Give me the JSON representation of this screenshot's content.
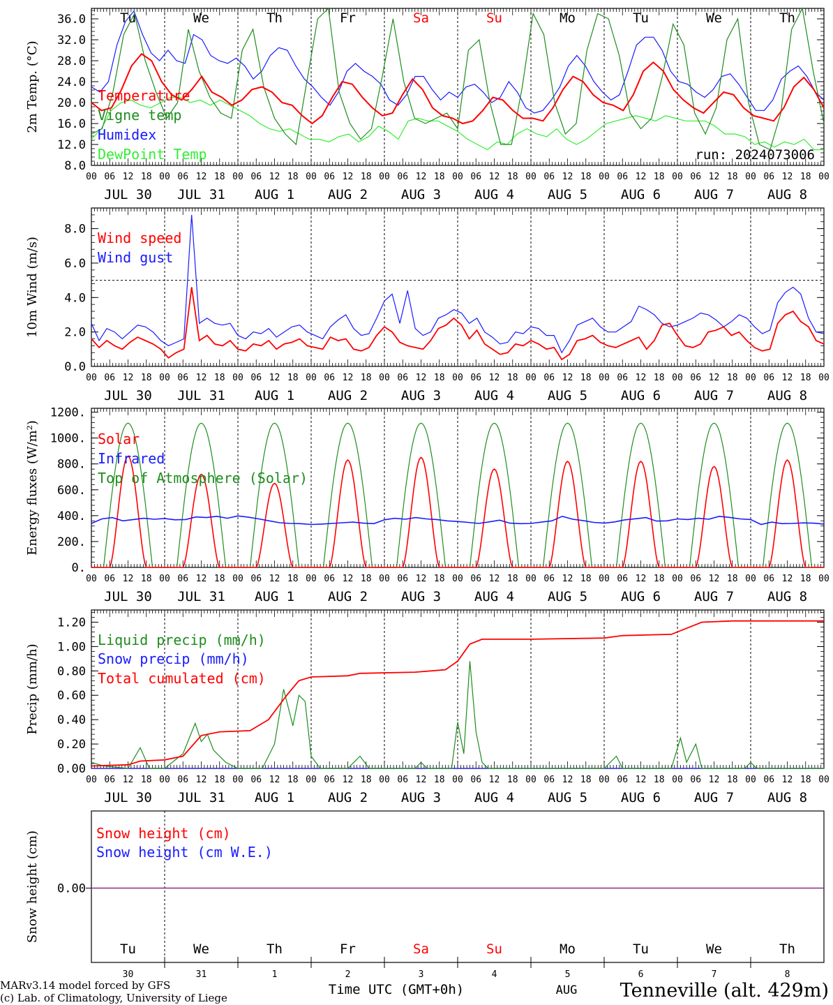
{
  "colors": {
    "red": "#ff0000",
    "dark_green": "#1e8c1e",
    "blue": "#1a1aff",
    "light_green": "#33ee33",
    "purple": "#8b2a8b",
    "black": "#000000",
    "weekend": "#ff0000"
  },
  "days": {
    "weekday_labels": [
      "Tu",
      "We",
      "Th",
      "Fr",
      "Sa",
      "Su",
      "Mo",
      "Tu",
      "We",
      "Th"
    ],
    "weekend_flags": [
      false,
      false,
      false,
      false,
      true,
      true,
      false,
      false,
      false,
      false
    ],
    "date_labels": [
      "JUL 30",
      "JUL 31",
      "AUG  1",
      "AUG  2",
      "AUG  3",
      "AUG  4",
      "AUG  5",
      "AUG  6",
      "AUG  7",
      "AUG  8"
    ],
    "hour_ticks": [
      "00",
      "06",
      "12",
      "18"
    ],
    "end_hour": "00",
    "day_numbers": [
      "30",
      "31",
      "1",
      "2",
      "3",
      "4",
      "5",
      "6",
      "7",
      "8"
    ]
  },
  "footer": {
    "time_axis_label": "Time UTC (GMT+0h)",
    "month_label": "AUG",
    "model_line1": "MARv3.14 model forced by GFS",
    "model_line2": "(c) Lab. of Climatology, University of Liege",
    "station": "Tenneville (alt. 429m)"
  },
  "chart_data": [
    {
      "type": "line",
      "ylabel": "2m Temp. (°C)",
      "ylim": [
        8,
        38
      ],
      "yticks": [
        "8.0",
        "12.0",
        "16.0",
        "20.0",
        "24.0",
        "28.0",
        "32.0",
        "36.0"
      ],
      "ytick_values": [
        8,
        12,
        16,
        20,
        24,
        28,
        32,
        36
      ],
      "run_label": "run: 2024073006",
      "grid": "vertical dashed day separators",
      "series": [
        {
          "name": "Temperature",
          "color": "red",
          "values": [
            20,
            18.5,
            19,
            22.5,
            27,
            29.3,
            28,
            24,
            21.5,
            20.5,
            22.5,
            25,
            22,
            21,
            19.5,
            20.5,
            22.5,
            23,
            22,
            20,
            19.5,
            17.5,
            16,
            17.5,
            21,
            24,
            23.5,
            21,
            19,
            17.5,
            18,
            21.5,
            24.5,
            22.5,
            19,
            17.5,
            17,
            16,
            16.5,
            18.5,
            21,
            20.5,
            18.5,
            17,
            17,
            16.5,
            19,
            22.5,
            25,
            24,
            21.5,
            20,
            19.5,
            18.5,
            21.5,
            26,
            27.7,
            26,
            22.5,
            20.5,
            19,
            18,
            20,
            22,
            21.5,
            19,
            17.5,
            17,
            16.5,
            19,
            23,
            24.8,
            22.5,
            19
          ]
        },
        {
          "name": "Vigne temp",
          "color": "dark_green",
          "values": [
            14,
            15,
            22,
            33,
            37,
            28,
            22,
            17,
            20,
            34,
            26,
            21,
            18,
            17,
            30,
            34,
            23,
            17,
            14,
            12,
            24,
            36,
            38,
            22,
            16,
            13,
            15,
            25,
            36,
            24,
            17,
            16,
            17,
            18,
            15,
            30,
            32,
            20,
            12,
            12,
            23,
            37,
            33,
            20,
            14,
            16,
            30,
            37,
            36,
            29,
            18,
            15,
            17,
            25,
            35,
            31,
            18,
            14,
            19,
            32,
            36,
            20,
            12,
            11,
            18,
            34,
            38,
            26,
            16
          ]
        },
        {
          "name": "Humidex",
          "color": "blue",
          "values": [
            23,
            22,
            24,
            31,
            35.5,
            37.5,
            33,
            29.5,
            28,
            30,
            28,
            27.5,
            33,
            32,
            29,
            28,
            27.5,
            28.5,
            27,
            24.5,
            26,
            29,
            30.5,
            30,
            27,
            24.5,
            23,
            21,
            19.5,
            22,
            26,
            27.5,
            26,
            25,
            23.5,
            20.5,
            19.5,
            21.5,
            25,
            25,
            22.5,
            20.5,
            22,
            21,
            23,
            23.5,
            22,
            20,
            21,
            24,
            22,
            19,
            18,
            18.5,
            20.5,
            23,
            27,
            29,
            27,
            24,
            22,
            20.5,
            21.5,
            26,
            31,
            32.5,
            32.5,
            30,
            26,
            24,
            23.5,
            22,
            21,
            22.5,
            25,
            25.5,
            23.5,
            21,
            18.5,
            18.5,
            20.5,
            24.5,
            26,
            27,
            25,
            22,
            20.5
          ]
        },
        {
          "name": "DewPoint Temp",
          "color": "light_green",
          "values": [
            13,
            15,
            18.5,
            20,
            20.5,
            19.5,
            19,
            20,
            21,
            21,
            20,
            20.5,
            19.5,
            20.5,
            19.5,
            18.5,
            17.5,
            16,
            15,
            14.5,
            15,
            14,
            13,
            13,
            12.5,
            13.5,
            14,
            12.5,
            13.5,
            15.5,
            14.5,
            13,
            16.5,
            17,
            16.5,
            16.5,
            15.5,
            14.5,
            13,
            12,
            11,
            12.5,
            12,
            14,
            15,
            14,
            13.5,
            15,
            13,
            12,
            13,
            14.5,
            16,
            16.5,
            17,
            17.5,
            17,
            16.5,
            17.5,
            17,
            16.5,
            16.5,
            16.5,
            15.5,
            14,
            14,
            13.5,
            12,
            12.5,
            11.5,
            12.5,
            12,
            13,
            11,
            11
          ]
        }
      ]
    },
    {
      "type": "line",
      "ylabel": "10m Wind (m/s)",
      "ylim": [
        0,
        9.2
      ],
      "yticks": [
        "0.0",
        "2.0",
        "4.0",
        "6.0",
        "8.0"
      ],
      "ytick_values": [
        0,
        2,
        4,
        6,
        8
      ],
      "reference_line": 5,
      "series": [
        {
          "name": "Wind speed",
          "color": "red",
          "values": [
            1.6,
            1.1,
            1.5,
            1.2,
            1.0,
            1.4,
            1.7,
            1.5,
            1.3,
            1.0,
            0.5,
            0.8,
            1.0,
            4.6,
            1.5,
            1.8,
            1.3,
            1.2,
            1.5,
            1.0,
            0.9,
            1.3,
            1.2,
            1.5,
            1.0,
            1.3,
            1.4,
            1.6,
            1.2,
            1.1,
            1.0,
            1.7,
            1.5,
            1.6,
            1.0,
            0.9,
            1.1,
            1.8,
            2.3,
            2.0,
            1.4,
            1.2,
            1.1,
            1.0,
            1.5,
            2.2,
            2.4,
            2.8,
            2.4,
            1.6,
            2.1,
            1.3,
            1.0,
            0.7,
            0.8,
            1.3,
            1.2,
            1.5,
            1.3,
            1.0,
            1.1,
            0.4,
            0.7,
            1.5,
            1.6,
            1.8,
            1.4,
            1.2,
            1.1,
            1.3,
            1.5,
            1.7,
            1.0,
            1.5,
            2.4,
            2.5,
            1.8,
            1.2,
            1.1,
            1.3,
            2.0,
            2.1,
            2.3,
            1.8,
            2.0,
            1.5,
            1.1,
            0.9,
            1.0,
            2.5,
            3.0,
            3.2,
            2.6,
            2.3,
            1.5,
            1.3
          ]
        },
        {
          "name": "Wind gust",
          "color": "blue",
          "values": [
            2.5,
            1.5,
            2.2,
            2.0,
            1.6,
            2.0,
            2.4,
            2.3,
            2.0,
            1.5,
            1.2,
            1.4,
            1.6,
            8.8,
            2.5,
            2.8,
            2.5,
            2.4,
            2.5,
            1.8,
            1.6,
            2.0,
            1.9,
            2.2,
            1.7,
            2.0,
            2.3,
            2.4,
            2.0,
            1.8,
            1.6,
            2.3,
            2.7,
            3.0,
            2.2,
            1.8,
            1.9,
            2.8,
            3.8,
            4.2,
            2.5,
            4.4,
            2.2,
            1.8,
            2.0,
            2.8,
            3.0,
            3.3,
            3.1,
            2.5,
            2.8,
            2.0,
            1.7,
            1.3,
            1.4,
            2.0,
            1.9,
            2.3,
            2.2,
            1.8,
            1.8,
            0.8,
            1.5,
            2.4,
            2.6,
            2.8,
            2.3,
            2.0,
            2.0,
            2.3,
            2.6,
            3.5,
            3.3,
            3.0,
            2.5,
            2.3,
            2.4,
            2.6,
            2.8,
            3.1,
            3.0,
            2.7,
            2.3,
            2.6,
            3.0,
            2.8,
            2.3,
            1.9,
            2.1,
            3.7,
            4.3,
            4.6,
            4.2,
            2.8,
            2.0,
            1.9
          ]
        }
      ]
    },
    {
      "type": "line",
      "ylabel": "Energy fluxes (W/m²)",
      "ylim": [
        0,
        1230
      ],
      "yticks": [
        "0.",
        "200.",
        "400.",
        "600.",
        "800.",
        "1000.",
        "1200."
      ],
      "ytick_values": [
        0,
        200,
        400,
        600,
        800,
        1000,
        1200
      ],
      "series": [
        {
          "name": "Solar",
          "color": "red",
          "peaks": [
            860,
            720,
            650,
            830,
            850,
            760,
            820,
            820,
            780,
            830
          ]
        },
        {
          "name": "Infrared",
          "color": "blue",
          "values": [
            340,
            375,
            385,
            360,
            370,
            380,
            372,
            378,
            368,
            370,
            390,
            385,
            395,
            380,
            398,
            388,
            375,
            360,
            345,
            340,
            338,
            332,
            335,
            340,
            345,
            350,
            342,
            338,
            368,
            380,
            372,
            385,
            375,
            370,
            360,
            355,
            348,
            340,
            352,
            365,
            342,
            338,
            340,
            350,
            360,
            395,
            372,
            362,
            348,
            342,
            352,
            368,
            376,
            385,
            358,
            360,
            375,
            370,
            380,
            372,
            395,
            386,
            375,
            370,
            332,
            350,
            338,
            340,
            344,
            342,
            335
          ]
        },
        {
          "name": "Top of Atmosphere (Solar)",
          "color": "dark_green",
          "peak": 1115
        }
      ]
    },
    {
      "type": "line",
      "ylabel": "Precip (mm/h)",
      "ylim": [
        0,
        1.3
      ],
      "yticks": [
        "0.00",
        "0.20",
        "0.40",
        "0.60",
        "0.80",
        "1.00",
        "1.20"
      ],
      "ytick_values": [
        0,
        0.2,
        0.4,
        0.6,
        0.8,
        1.0,
        1.2
      ],
      "series": [
        {
          "name": "Liquid precip (mm/h)",
          "color": "dark_green",
          "values": [
            [
              0,
              0.05
            ],
            [
              4,
              0.02
            ],
            [
              12,
              0.0
            ],
            [
              16,
              0.17
            ],
            [
              19,
              0.0
            ],
            [
              24,
              0.0
            ],
            [
              30,
              0.12
            ],
            [
              34,
              0.37
            ],
            [
              36,
              0.22
            ],
            [
              38,
              0.28
            ],
            [
              40,
              0.15
            ],
            [
              44,
              0.05
            ],
            [
              48,
              0.0
            ],
            [
              56,
              0.0
            ],
            [
              60,
              0.2
            ],
            [
              63,
              0.65
            ],
            [
              66,
              0.35
            ],
            [
              68,
              0.6
            ],
            [
              70,
              0.55
            ],
            [
              72,
              0.1
            ],
            [
              75,
              0.0
            ],
            [
              84,
              0.0
            ],
            [
              88,
              0.1
            ],
            [
              91,
              0.0
            ],
            [
              106,
              0.0
            ],
            [
              108,
              0.05
            ],
            [
              110,
              0.0
            ],
            [
              118,
              0.0
            ],
            [
              120,
              0.38
            ],
            [
              122,
              0.12
            ],
            [
              124,
              0.88
            ],
            [
              126,
              0.3
            ],
            [
              128,
              0.05
            ],
            [
              130,
              0.0
            ],
            [
              168,
              0.0
            ],
            [
              172,
              0.1
            ],
            [
              174,
              0.0
            ],
            [
              190,
              0.0
            ],
            [
              193,
              0.25
            ],
            [
              195,
              0.05
            ],
            [
              198,
              0.2
            ],
            [
              200,
              0.0
            ],
            [
              214,
              0.0
            ],
            [
              216,
              0.05
            ],
            [
              218,
              0.0
            ],
            [
              240,
              0.0
            ]
          ]
        },
        {
          "name": "Snow precip (mm/h)",
          "color": "blue",
          "values": [
            [
              0,
              0.0
            ],
            [
              240,
              0.0
            ]
          ]
        },
        {
          "name": "Total cumulated (cm)",
          "color": "red",
          "values": [
            [
              0,
              0.02
            ],
            [
              12,
              0.03
            ],
            [
              16,
              0.06
            ],
            [
              24,
              0.07
            ],
            [
              30,
              0.1
            ],
            [
              36,
              0.27
            ],
            [
              42,
              0.3
            ],
            [
              52,
              0.31
            ],
            [
              58,
              0.4
            ],
            [
              64,
              0.6
            ],
            [
              68,
              0.72
            ],
            [
              72,
              0.75
            ],
            [
              84,
              0.76
            ],
            [
              88,
              0.78
            ],
            [
              106,
              0.79
            ],
            [
              116,
              0.81
            ],
            [
              120,
              0.88
            ],
            [
              124,
              1.02
            ],
            [
              128,
              1.06
            ],
            [
              144,
              1.06
            ],
            [
              168,
              1.07
            ],
            [
              174,
              1.09
            ],
            [
              190,
              1.1
            ],
            [
              200,
              1.2
            ],
            [
              210,
              1.21
            ],
            [
              240,
              1.21
            ]
          ]
        }
      ]
    },
    {
      "type": "line",
      "ylabel": "Snow height (cm)",
      "yticks": [
        "0.00"
      ],
      "series": [
        {
          "name": "Snow height (cm)",
          "color": "red",
          "values": [
            0,
            0
          ]
        },
        {
          "name": "Snow height (cm W.E.)",
          "color": "blue",
          "values": [
            0,
            0
          ]
        }
      ]
    }
  ]
}
